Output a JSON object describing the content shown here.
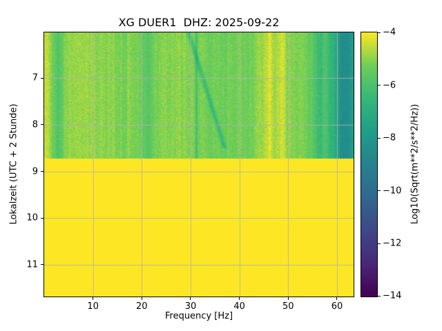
{
  "figure": {
    "title": "XG DUER1  DHZ: 2025-09-22"
  },
  "chart_data": {
    "type": "heatmap",
    "subtype": "spectrogram",
    "title": "XG DUER1  DHZ: 2025-09-22",
    "xlabel": "Frequency [Hz]",
    "ylabel": "Lokalzeit (UTC + 2 Stunde)",
    "x_range": [
      0,
      63.4
    ],
    "y_range": [
      6.02,
      11.68
    ],
    "y_increases_downward": true,
    "grid": true,
    "grid_color": "#b0b0b0",
    "x_ticks": [
      10,
      20,
      30,
      40,
      50,
      60
    ],
    "x_tick_labels": [
      "10",
      "20",
      "30",
      "40",
      "50",
      "60"
    ],
    "y_ticks": [
      7,
      8,
      9,
      10,
      11
    ],
    "y_tick_labels": [
      "7",
      "8",
      "9",
      "10",
      "11"
    ],
    "colorbar": {
      "label": "Log10(Sqrt(m**2/s**2/Hz))",
      "ticks": [
        -4,
        -6,
        -8,
        -10,
        -12,
        -14
      ],
      "tick_labels": [
        "−4",
        "−6",
        "−8",
        "−10",
        "−12",
        "−14"
      ],
      "vmin": -14,
      "vmax": -4,
      "colormap": "viridis",
      "stops": [
        [
          0.0,
          "#440154"
        ],
        [
          0.125,
          "#482878"
        ],
        [
          0.25,
          "#3e4989"
        ],
        [
          0.375,
          "#31688e"
        ],
        [
          0.5,
          "#26828e"
        ],
        [
          0.625,
          "#1f9e89"
        ],
        [
          0.75,
          "#35b779"
        ],
        [
          0.875,
          "#6ece58"
        ],
        [
          1.0,
          "#fde725"
        ]
      ]
    },
    "regions": {
      "spectrogram": {
        "time_from": 6.02,
        "time_to": 8.73
      },
      "saturated": {
        "time_from": 8.73,
        "time_to": 11.68,
        "value": -4
      }
    },
    "freq_profile": [
      [
        0.0,
        -4.3
      ],
      [
        0.7,
        -4.6
      ],
      [
        1.5,
        -5.1
      ],
      [
        2.8,
        -5.5
      ],
      [
        4.0,
        -5.2
      ],
      [
        5.0,
        -5.0
      ],
      [
        6.0,
        -4.85
      ],
      [
        8.0,
        -4.8
      ],
      [
        10.0,
        -4.95
      ],
      [
        12.0,
        -5.05
      ],
      [
        14.0,
        -4.95
      ],
      [
        16.0,
        -5.2
      ],
      [
        18.0,
        -5.05
      ],
      [
        20.0,
        -5.35
      ],
      [
        21.5,
        -5.5
      ],
      [
        23.0,
        -5.15
      ],
      [
        25.0,
        -5.0
      ],
      [
        27.0,
        -5.05
      ],
      [
        29.0,
        -5.0
      ],
      [
        30.5,
        -5.15
      ],
      [
        32.0,
        -5.2
      ],
      [
        34.0,
        -5.3
      ],
      [
        36.0,
        -5.2
      ],
      [
        38.0,
        -5.35
      ],
      [
        40.0,
        -5.2
      ],
      [
        42.0,
        -5.25
      ],
      [
        44.0,
        -5.0
      ],
      [
        45.5,
        -4.7
      ],
      [
        47.0,
        -4.75
      ],
      [
        48.5,
        -4.65
      ],
      [
        50.0,
        -5.0
      ],
      [
        51.5,
        -5.15
      ],
      [
        52.5,
        -5.0
      ],
      [
        54.0,
        -5.4
      ],
      [
        55.0,
        -5.6
      ],
      [
        56.0,
        -6.0
      ],
      [
        57.0,
        -5.9
      ],
      [
        58.0,
        -6.1
      ],
      [
        59.0,
        -6.3
      ],
      [
        60.0,
        -7.4
      ],
      [
        60.8,
        -8.4
      ],
      [
        62.0,
        -8.6
      ],
      [
        63.0,
        -8.0
      ],
      [
        63.4,
        -7.6
      ]
    ],
    "vertical_features": [
      {
        "f": 31.2,
        "w": 0.25,
        "dv": -1.1
      },
      {
        "f": 21.3,
        "w": 0.8,
        "dv": -0.4
      },
      {
        "f": 2.8,
        "w": 0.8,
        "dv": -0.5
      },
      {
        "f": 46.2,
        "w": 0.5,
        "dv": 0.35
      },
      {
        "f": 48.8,
        "w": 0.5,
        "dv": 0.3
      },
      {
        "f": 56.5,
        "w": 0.7,
        "dv": -0.4
      },
      {
        "f": 58.8,
        "w": 0.4,
        "dv": -0.5
      }
    ],
    "diagonal_feature": {
      "f0": 29.6,
      "t0": 6.02,
      "f1": 37.0,
      "t1": 8.5,
      "w": 0.45,
      "dv": -1.15
    },
    "noise": {
      "amp": 0.55,
      "freq_bin_hz": 0.22,
      "time_bin_s": 36,
      "column_amp": 0.3
    }
  }
}
